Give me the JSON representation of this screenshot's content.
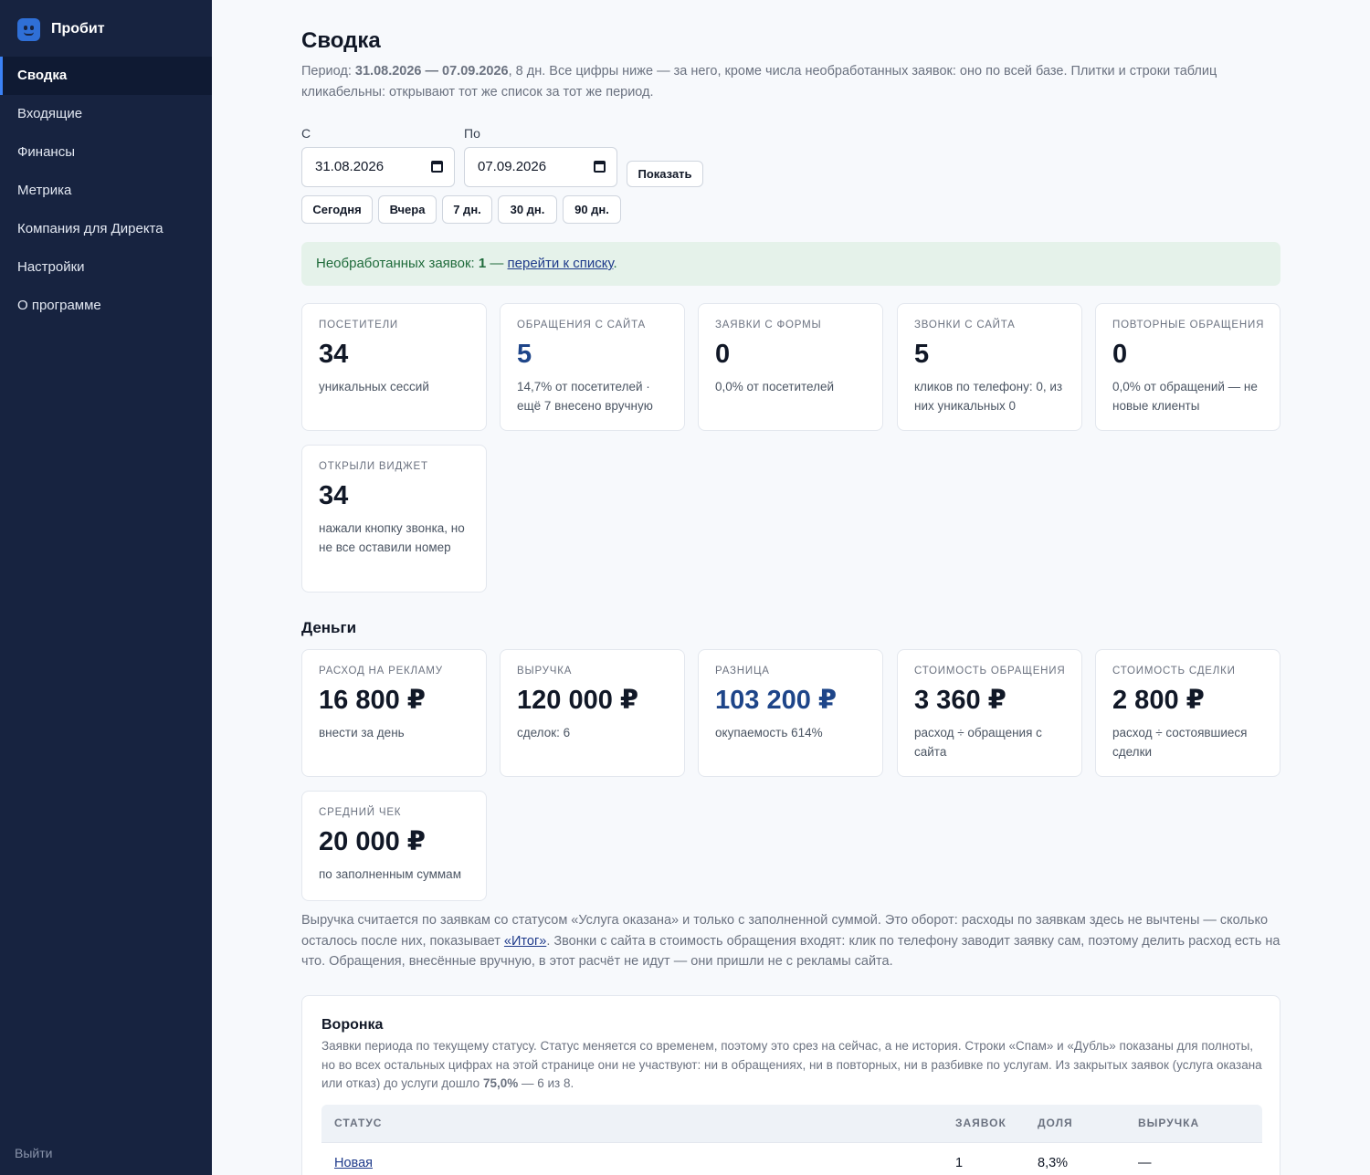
{
  "brand": {
    "name": "Пробит"
  },
  "nav": {
    "items": [
      "Сводка",
      "Входящие",
      "Финансы",
      "Метрика",
      "Компания для Директа",
      "Настройки",
      "О программе"
    ],
    "logout": "Выйти"
  },
  "page": {
    "title": "Сводка",
    "period_prefix": "Период: ",
    "period_range": "31.08.2026 — 07.09.2026",
    "period_rest": ", 8 дн. Все цифры ниже — за него, кроме числа необработанных заявок: оно по всей базе. Плитки и строки таблиц кликабельны: открывают тот же список за тот же период."
  },
  "filters": {
    "from_label": "С",
    "from_value": "31.08.2026",
    "to_label": "По",
    "to_value": "07.09.2026",
    "show_button": "Показать",
    "presets": [
      "Сегодня",
      "Вчера",
      "7 дн.",
      "30 дн.",
      "90 дн."
    ]
  },
  "alert": {
    "prefix": "Необработанных заявок: ",
    "count": "1",
    "dash": " — ",
    "link": "перейти к списку",
    "suffix": "."
  },
  "stats": [
    {
      "label": "Посетители",
      "value": "34",
      "sub": "уникальных сессий",
      "accent": false
    },
    {
      "label": "Обращения с сайта",
      "value": "5",
      "sub": "14,7% от посетителей · ещё 7 внесено вручную",
      "accent": true
    },
    {
      "label": "Заявки с формы",
      "value": "0",
      "sub": "0,0% от посетителей",
      "accent": false
    },
    {
      "label": "Звонки с сайта",
      "value": "5",
      "sub": "кликов по телефону: 0, из них уникальных 0",
      "accent": false
    },
    {
      "label": "Повторные обращения",
      "value": "0",
      "sub": "0,0% от обращений — не новые клиенты",
      "accent": false
    },
    {
      "label": "Открыли виджет",
      "value": "34",
      "sub": "нажали кнопку звонка, но не все оставили номер",
      "accent": false
    }
  ],
  "money": {
    "heading": "Деньги",
    "cards": [
      {
        "label": "Расход на рекламу",
        "value": "16 800 ₽",
        "sub": "внести за день"
      },
      {
        "label": "Выручка",
        "value": "120 000 ₽",
        "sub": "сделок: 6"
      },
      {
        "label": "Разница",
        "value": "103 200 ₽",
        "sub": "окупаемость 614%"
      },
      {
        "label": "Стоимость обращения",
        "value": "3 360 ₽",
        "sub": "расход ÷ обращения с сайта"
      },
      {
        "label": "Стоимость сделки",
        "value": "2 800 ₽",
        "sub": "расход ÷ состоявшиеся сделки"
      },
      {
        "label": "Средний чек",
        "value": "20 000 ₽",
        "sub": "по заполненным суммам"
      }
    ],
    "note_part1": "Выручка считается по заявкам со статусом «Услуга оказана» и только с заполненной суммой. Это оборот: расходы по заявкам здесь не вычтены — сколько осталось после них, показывает ",
    "note_link": "«Итог»",
    "note_part2": ". Звонки с сайта в стоимость обращения входят: клик по телефону заводит заявку сам, поэтому делить расход есть на что. Обращения, внесённые вручную, в этот расчёт не идут — они пришли не с рекламы сайта."
  },
  "funnel": {
    "title": "Воронка",
    "desc_part1": "Заявки периода по текущему статусу. Статус меняется со временем, поэтому это срез на сейчас, а не история. Строки «Спам» и «Дубль» показаны для полноты, но во всех остальных цифрах на этой странице они не участвуют: ни в обращениях, ни в повторных, ни в разбивке по услугам. Из закрытых заявок (услуга оказана или отказ) до услуги дошло ",
    "desc_pct": "75,0%",
    "desc_part2": " — 6 из 8.",
    "columns": [
      "Статус",
      "Заявок",
      "Доля",
      "Выручка"
    ],
    "rows": [
      {
        "status": "Новая",
        "count": "1",
        "share": "8,3%",
        "revenue": "—"
      }
    ]
  }
}
